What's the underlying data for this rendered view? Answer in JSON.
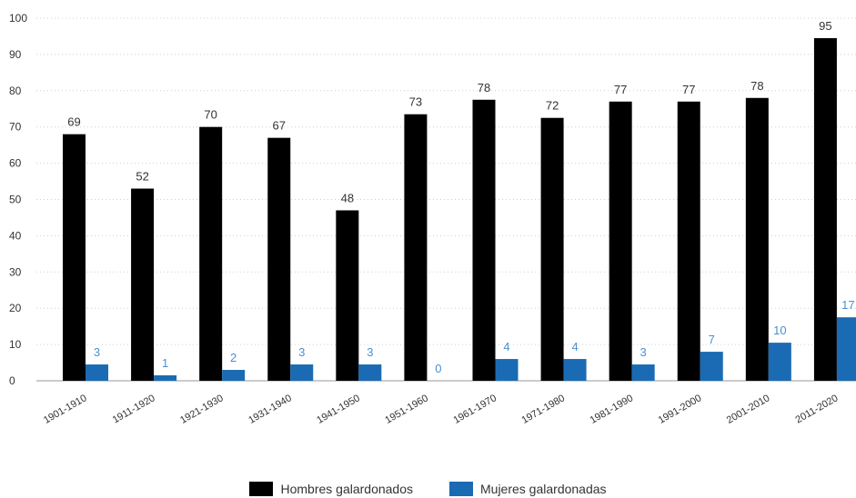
{
  "chart_data": {
    "type": "bar",
    "categories": [
      "1901-1910",
      "1911-1920",
      "1921-1930",
      "1931-1940",
      "1941-1950",
      "1951-1960",
      "1961-1970",
      "1971-1980",
      "1981-1990",
      "1991-2000",
      "2001-2010",
      "2011-2020"
    ],
    "series": [
      {
        "name": "Hombres galardonados",
        "color": "#000000",
        "label_color": "#333333",
        "values": [
          69,
          52,
          70,
          67,
          48,
          73,
          78,
          72,
          77,
          77,
          78,
          95
        ],
        "bar_values": [
          68,
          53,
          70,
          67,
          47,
          73.5,
          77.5,
          72.5,
          77,
          77,
          78,
          94.5
        ]
      },
      {
        "name": "Mujeres galardonadas",
        "color": "#1a6bb3",
        "label_color": "#4a90d0",
        "values": [
          3,
          1,
          2,
          3,
          3,
          0,
          4,
          4,
          3,
          7,
          10,
          17
        ],
        "bar_values": [
          4.5,
          1.5,
          3,
          4.5,
          4.5,
          0,
          6,
          6,
          4.5,
          8,
          10.5,
          17.5
        ]
      }
    ],
    "ylim": [
      0,
      100
    ],
    "yticks": [
      0,
      10,
      20,
      30,
      40,
      50,
      60,
      70,
      80,
      90,
      100
    ],
    "grid": true,
    "legend": "bottom-center"
  }
}
